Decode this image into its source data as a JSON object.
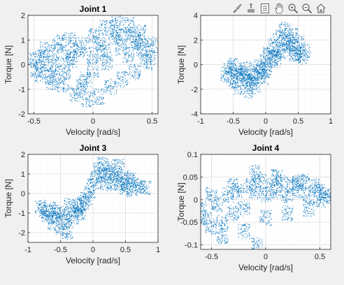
{
  "toolbar": {
    "icons": [
      "brush-icon",
      "datatip-icon",
      "legend-icon",
      "pan-icon",
      "zoom-in-icon",
      "zoom-out-icon",
      "home-icon"
    ]
  },
  "colors": {
    "points": "#0072bd",
    "grid": "#dcdcdc",
    "axis": "#262626",
    "background": "#ffffff"
  },
  "chart_data": [
    {
      "type": "scatter",
      "title": "Joint 1",
      "xlabel": "Velocity [rad/s]",
      "ylabel": "Torque [N]",
      "xlim": [
        -0.55,
        0.55
      ],
      "ylim": [
        -2,
        2
      ],
      "xticks": [
        -0.5,
        0,
        0.5
      ],
      "xtick_labels": [
        "-0.5",
        "0",
        "0.5"
      ],
      "yticks": [
        -2,
        -1,
        0,
        1,
        2
      ],
      "ytick_labels": [
        "-2",
        "-1",
        "0",
        "1",
        "2"
      ],
      "grid": true,
      "series": [
        {
          "x": [
            -0.5,
            -0.45,
            -0.4,
            -0.35,
            -0.3,
            -0.25,
            -0.2,
            -0.15,
            -0.1,
            -0.05,
            0,
            0.05,
            0.1,
            0.15,
            0.2,
            0.25,
            0.3,
            0.35,
            0.4,
            0.45,
            0.5,
            -0.48,
            -0.42,
            -0.36,
            -0.3,
            -0.24,
            -0.18,
            -0.12,
            -0.06,
            0,
            0.06,
            0.12,
            0.18,
            0.24,
            0.3,
            0.36,
            0.42,
            0.48,
            -0.4,
            -0.3,
            -0.2,
            -0.1,
            0,
            0.1,
            0.2,
            0.3,
            0.4
          ],
          "y": [
            0.2,
            -0.4,
            0.6,
            -0.7,
            0.9,
            -0.8,
            1.0,
            -1.2,
            0.8,
            -1.4,
            1.2,
            -1.3,
            1.5,
            -0.9,
            1.7,
            -0.6,
            1.6,
            -0.3,
            1.3,
            0.1,
            0.8,
            -0.2,
            0.3,
            -0.5,
            0.5,
            -0.3,
            0.2,
            0.6,
            -0.6,
            0.4,
            0.9,
            0.1,
            1.1,
            0.7,
            0.4,
            1.0,
            0.6,
            0.3,
            0.0,
            -0.1,
            0.3,
            -0.9,
            -0.2,
            0.5,
            1.3,
            1.2,
            0.9
          ]
        }
      ]
    },
    {
      "type": "scatter",
      "title": "",
      "xlabel": "Velocity [rad/s]",
      "ylabel": "Torque [N]",
      "xlim": [
        -1,
        1
      ],
      "ylim": [
        -4,
        4
      ],
      "xticks": [
        -1,
        -0.5,
        0,
        0.5,
        1
      ],
      "xtick_labels": [
        "-1",
        "-0.5",
        "0",
        "0.5",
        "1"
      ],
      "yticks": [
        -4,
        -2,
        0,
        2,
        4
      ],
      "ytick_labels": [
        "-4",
        "-2",
        "0",
        "2",
        "4"
      ],
      "grid": true,
      "series": [
        {
          "x": [
            -0.6,
            -0.55,
            -0.5,
            -0.45,
            -0.4,
            -0.35,
            -0.3,
            -0.25,
            -0.2,
            -0.15,
            -0.1,
            -0.05,
            0,
            0.05,
            0.1,
            0.15,
            0.2,
            0.25,
            0.3,
            0.35,
            0.4,
            0.45,
            0.5,
            0.55,
            0.6,
            -0.5,
            -0.4,
            -0.3,
            -0.2,
            -0.1,
            0,
            0.1,
            0.2,
            0.3,
            0.4,
            0.5
          ],
          "y": [
            -0.8,
            -0.3,
            -1.3,
            -0.5,
            -1.8,
            -0.7,
            -1.2,
            -2.1,
            -0.9,
            -1.6,
            -0.6,
            -1.0,
            0.2,
            0.8,
            1.5,
            0.4,
            2.2,
            1.1,
            2.8,
            1.6,
            2.4,
            0.9,
            1.8,
            0.6,
            1.2,
            -0.1,
            -0.9,
            -0.4,
            -1.4,
            -0.2,
            -0.5,
            0.6,
            1.0,
            2.0,
            1.5,
            0.9
          ]
        }
      ]
    },
    {
      "type": "scatter",
      "title": "Joint 3",
      "xlabel": "Velocity [rad/s]",
      "ylabel": "Torque [N]",
      "xlim": [
        -1,
        1
      ],
      "ylim": [
        -2.5,
        2
      ],
      "xticks": [
        -1,
        -0.5,
        0,
        0.5,
        1
      ],
      "xtick_labels": [
        "-1",
        "-0.5",
        "0",
        "0.5",
        "1"
      ],
      "yticks": [
        -2,
        -1,
        0,
        1,
        2
      ],
      "ytick_labels": [
        "-2",
        "-1",
        "0",
        "1",
        "2"
      ],
      "grid": true,
      "series": [
        {
          "x": [
            -0.8,
            -0.75,
            -0.7,
            -0.65,
            -0.6,
            -0.55,
            -0.5,
            -0.45,
            -0.4,
            -0.35,
            -0.3,
            -0.25,
            -0.2,
            -0.15,
            -0.1,
            -0.05,
            0,
            0.05,
            0.1,
            0.15,
            0.2,
            0.25,
            0.3,
            0.35,
            0.4,
            0.45,
            0.5,
            0.55,
            0.6,
            0.7,
            0.8,
            -0.6,
            -0.4,
            -0.2,
            0.2,
            0.4,
            0.6
          ],
          "y": [
            -0.7,
            -0.9,
            -1.2,
            -0.8,
            -1.5,
            -1.1,
            -1.8,
            -1.0,
            -1.4,
            -0.6,
            -1.2,
            -0.8,
            -1.0,
            -0.5,
            -0.3,
            0.1,
            0.4,
            0.8,
            1.2,
            1.5,
            0.9,
            1.3,
            0.6,
            1.0,
            0.5,
            0.8,
            0.3,
            0.6,
            0.2,
            0.4,
            0.3,
            -0.9,
            -2.0,
            -0.6,
            0.5,
            1.4,
            0.7
          ]
        }
      ]
    },
    {
      "type": "scatter",
      "title": "Joint 4",
      "xlabel": "Velocity [rad/s]",
      "ylabel": "Torque [N]",
      "xlim": [
        -0.6,
        0.6
      ],
      "ylim": [
        -0.11,
        0.1
      ],
      "xticks": [
        -0.5,
        0,
        0.5
      ],
      "xtick_labels": [
        "-0.5",
        "0",
        "0.5"
      ],
      "yticks": [
        -0.1,
        -0.05,
        0,
        0.05,
        0.1
      ],
      "ytick_labels": [
        "-0.1",
        "-0.05",
        "0",
        "0.05",
        "0.1"
      ],
      "grid": true,
      "series": [
        {
          "x": [
            -0.6,
            -0.55,
            -0.5,
            -0.45,
            -0.4,
            -0.35,
            -0.3,
            -0.25,
            -0.2,
            -0.15,
            -0.1,
            -0.05,
            0,
            0.05,
            0.1,
            0.15,
            0.2,
            0.25,
            0.3,
            0.35,
            0.4,
            0.45,
            0.5,
            0.55,
            0.6,
            -0.5,
            -0.4,
            -0.3,
            -0.2,
            -0.1,
            -0.08,
            0.0,
            0.1,
            0.2,
            0.3,
            0.4,
            0.5
          ],
          "y": [
            -0.02,
            -0.04,
            -0.06,
            -0.01,
            -0.05,
            0.01,
            -0.03,
            0.02,
            -0.02,
            0.03,
            0.02,
            0.04,
            0.01,
            0.03,
            0.02,
            0.04,
            0.01,
            0.03,
            0.02,
            0.04,
            0.01,
            0.03,
            0.0,
            0.01,
            0.005,
            0.01,
            -0.08,
            0.03,
            -0.07,
            0.06,
            -0.1,
            -0.04,
            0.05,
            -0.03,
            0.04,
            -0.02,
            0.02
          ]
        }
      ]
    }
  ]
}
